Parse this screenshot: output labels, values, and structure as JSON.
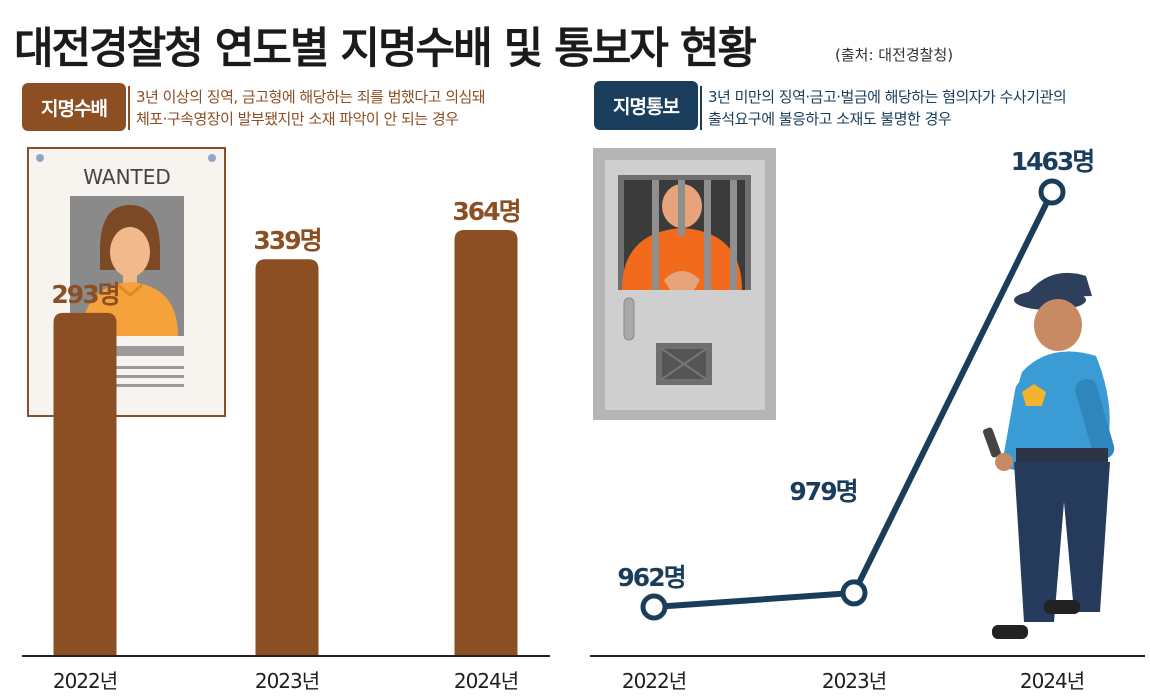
{
  "title": "대전경찰청 연도별 지명수배 및 통보자 현황",
  "source": "(출처: 대전경찰청)",
  "left_panel": {
    "badge": "지명수배",
    "desc_line1": "3년 이상의 징역, 금고형에 해당하는 죄를 범했다고 의심돼",
    "desc_line2": "체포·구속영장이 발부됐지만 소재 파악이 안 되는 경우",
    "poster_text": "WANTED"
  },
  "right_panel": {
    "badge": "지명통보",
    "desc_line1": "3년 미만의 징역·금고·벌금에 해당하는 혐의자가 수사기관의",
    "desc_line2": "출석요구에 불응하고 소재도 불명한 경우"
  },
  "colors": {
    "bar": "#8c4f23",
    "line": "#1a3d5c",
    "axis": "#222222"
  },
  "chart_data": [
    {
      "type": "bar",
      "categories": [
        "2022년",
        "2023년",
        "2024년"
      ],
      "values": [
        293,
        339,
        364
      ],
      "data_labels": [
        "293명",
        "339명",
        "364명"
      ],
      "ylim": [
        0,
        400
      ]
    },
    {
      "type": "line",
      "categories": [
        "2022년",
        "2023년",
        "2024년"
      ],
      "values": [
        962,
        979,
        1463
      ],
      "data_labels": [
        "962명",
        "979명",
        "1463명"
      ]
    }
  ]
}
